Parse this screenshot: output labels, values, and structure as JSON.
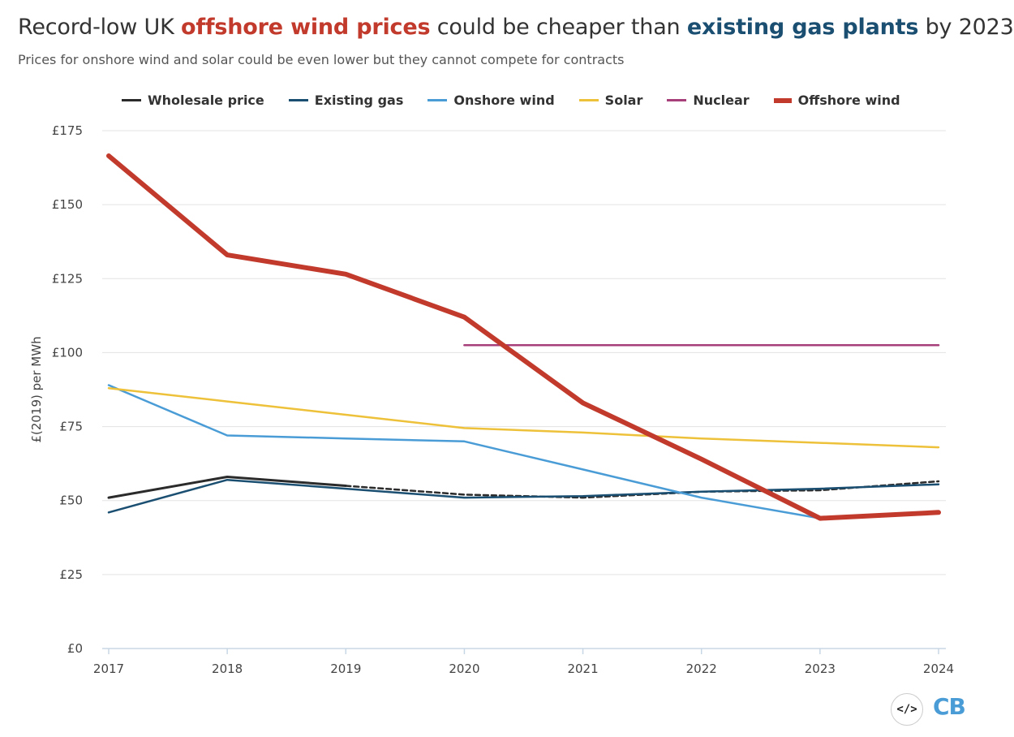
{
  "title": {
    "part1": "Record-low UK ",
    "highlight1": "offshore wind prices",
    "part2": " could be cheaper than ",
    "highlight2": "existing gas plants",
    "part3": " by 2023"
  },
  "subtitle": "Prices for onshore wind and solar could be even lower but they cannot compete for contracts",
  "embed_icon": "</>",
  "logo": "CB",
  "chart_data": {
    "type": "line",
    "title": "Record-low UK offshore wind prices could be cheaper than existing gas plants by 2023",
    "xlabel": "",
    "ylabel": "£(2019) per MWh",
    "x": [
      2017,
      2018,
      2019,
      2020,
      2021,
      2022,
      2023,
      2024
    ],
    "ylim": [
      0,
      175
    ],
    "yticks": [
      0,
      25,
      50,
      75,
      100,
      125,
      150,
      175
    ],
    "ytick_labels": [
      "£0",
      "£25",
      "£50",
      "£75",
      "£100",
      "£125",
      "£150",
      "£175"
    ],
    "grid": true,
    "legend_position": "top",
    "series": [
      {
        "name": "Wholesale price",
        "color": "#2b2b2b",
        "width": 3,
        "x": [
          2017,
          2018,
          2019
        ],
        "values": [
          51,
          58,
          55
        ]
      },
      {
        "name": "Wholesale price (projected)",
        "legend": false,
        "dashed": true,
        "color": "#2b2b2b",
        "width": 2.5,
        "x": [
          2019,
          2020,
          2021,
          2022,
          2023,
          2024
        ],
        "values": [
          55,
          52,
          51,
          53,
          53.5,
          56.5
        ]
      },
      {
        "name": "Existing gas",
        "color": "#1b4f72",
        "width": 2.5,
        "x": [
          2017,
          2018,
          2019,
          2020,
          2021,
          2022,
          2023,
          2024
        ],
        "values": [
          46,
          57,
          54,
          51,
          51.5,
          53,
          54,
          55.5
        ]
      },
      {
        "name": "Onshore wind",
        "color": "#4a9cd6",
        "width": 2.5,
        "x": [
          2017,
          2018,
          2019,
          2020,
          2021,
          2022,
          2023
        ],
        "values": [
          89,
          72,
          71,
          70,
          60.5,
          51,
          44
        ]
      },
      {
        "name": "Solar",
        "color": "#eec13a",
        "width": 2.5,
        "x": [
          2017,
          2018,
          2019,
          2020,
          2021,
          2022,
          2023,
          2024
        ],
        "values": [
          88,
          83.5,
          79,
          74.5,
          73,
          71,
          69.5,
          68
        ]
      },
      {
        "name": "Nuclear",
        "color": "#a63f7a",
        "width": 2.5,
        "x": [
          2020,
          2024
        ],
        "values": [
          102.5,
          102.5
        ]
      },
      {
        "name": "Offshore wind",
        "color": "#c23a2b",
        "width": 6,
        "x": [
          2017,
          2018,
          2019,
          2020,
          2021,
          2022,
          2023,
          2024
        ],
        "values": [
          166.5,
          133,
          126.5,
          112,
          83,
          64,
          44,
          46
        ]
      }
    ]
  }
}
